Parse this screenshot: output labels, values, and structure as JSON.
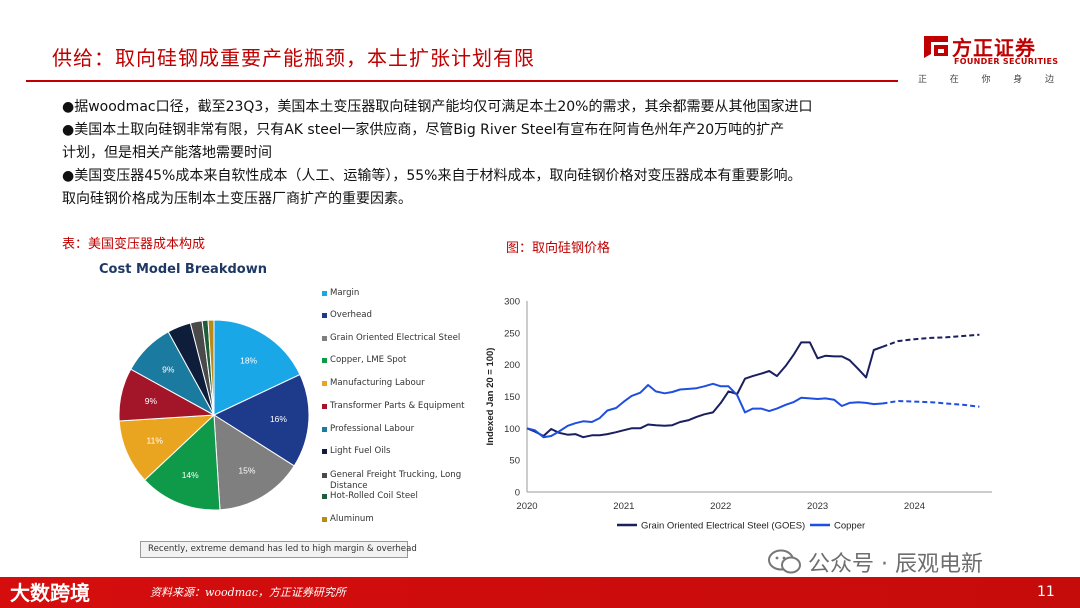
{
  "header": {
    "title": "供给：取向硅钢成重要产能瓶颈，本土扩张计划有限",
    "logo_name": "方正证券",
    "logo_en": "FOUNDER SECURITIES",
    "logo_slogan": [
      "正",
      "在",
      "你",
      "身",
      "边"
    ]
  },
  "bullets": [
    "●据woodmac口径，截至23Q3，美国本土变压器取向硅钢产能均仅可满足本土20%的需求，其余都需要从其他国家进口",
    "●美国本土取向硅钢非常有限，只有AK steel一家供应商，尽管Big River Steel有宣布在阿肯色州年产20万吨的扩产",
    "计划，但是相关产能落地需要时间",
    "●美国变压器45%成本来自软性成本（人工、运输等），55%来自于材料成本，取向硅钢价格对变压器成本有重要影响。",
    "取向硅钢价格成为压制本土变压器厂商扩产的重要因素。"
  ],
  "captions": {
    "left": "表：美国变压器成本构成",
    "right": "图：取向硅钢价格"
  },
  "pie_note": "Recently, extreme demand has led to high margin & overhead",
  "footer": {
    "source": "资料来源：woodmac，方正证券研究所",
    "page": "11",
    "watermark_left": "大数跨境",
    "watermark_right": "公众号 · 辰观电新"
  },
  "chart_data": [
    {
      "type": "pie",
      "title": "Cost Model Breakdown",
      "categories": [
        "Margin",
        "Overhead",
        "Grain Oriented Electrical Steel",
        "Copper, LME Spot",
        "Manufacturing Labour",
        "Transformer Parts & Equipment",
        "Professional Labour",
        "Light Fuel Oils",
        "General Freight Trucking, Long Distance",
        "Hot-Rolled Coil Steel",
        "Aluminum"
      ],
      "values": [
        18,
        16,
        15,
        14,
        11,
        9,
        9,
        4,
        2,
        1,
        1
      ],
      "data_labels": [
        "18%",
        "16%",
        "15%",
        "14%",
        "11%",
        "9%",
        "9%",
        "",
        "",
        "",
        ""
      ],
      "colors": [
        "#1aa7e8",
        "#1e3a8a",
        "#7f7f7f",
        "#0f9a4a",
        "#eaa520",
        "#a3162a",
        "#1a7aa0",
        "#0d1d3a",
        "#4a4a4a",
        "#1f5e3a",
        "#b88a1a"
      ],
      "legend_position": "right"
    },
    {
      "type": "line",
      "title": "",
      "ylabel": "Indexed Jan 20 = 100)",
      "xlabel": "",
      "x_ticks": [
        "2020",
        "2021",
        "2022",
        "2023",
        "2024"
      ],
      "y_ticks": [
        0,
        50,
        100,
        150,
        200,
        250,
        300
      ],
      "xlim": [
        2020.0,
        2024.8
      ],
      "ylim": [
        0,
        300
      ],
      "grid": false,
      "legend_position": "bottom",
      "series": [
        {
          "name": "Grain Oriented Electrical Steel (GOES)",
          "color": "#1a1f5e",
          "x": [
            2020.0,
            2020.08,
            2020.17,
            2020.25,
            2020.33,
            2020.42,
            2020.5,
            2020.58,
            2020.67,
            2020.75,
            2020.83,
            2020.92,
            2021.0,
            2021.08,
            2021.17,
            2021.25,
            2021.33,
            2021.42,
            2021.5,
            2021.58,
            2021.67,
            2021.75,
            2021.83,
            2021.92,
            2022.0,
            2022.08,
            2022.17,
            2022.25,
            2022.33,
            2022.42,
            2022.5,
            2022.58,
            2022.67,
            2022.75,
            2022.83,
            2022.92,
            2023.0,
            2023.08,
            2023.17,
            2023.25,
            2023.33,
            2023.42,
            2023.5,
            2023.58,
            2023.67
          ],
          "y": [
            100,
            95,
            88,
            99,
            93,
            90,
            91,
            86,
            89,
            89,
            91,
            94,
            97,
            100,
            100,
            106,
            105,
            104,
            105,
            110,
            113,
            118,
            122,
            125,
            140,
            158,
            154,
            178,
            182,
            186,
            190,
            182,
            198,
            215,
            235,
            235,
            210,
            214,
            213,
            213,
            207,
            193,
            180,
            223,
            228
          ]
        },
        {
          "name": "GOES (forecast)",
          "color": "#1a1f5e",
          "dashed": true,
          "x": [
            2023.67,
            2023.83,
            2024.0,
            2024.17,
            2024.33,
            2024.5,
            2024.67
          ],
          "y": [
            228,
            237,
            240,
            242,
            243,
            245,
            247
          ]
        },
        {
          "name": "Copper",
          "color": "#1f4fe0",
          "x": [
            2020.0,
            2020.08,
            2020.17,
            2020.25,
            2020.33,
            2020.42,
            2020.5,
            2020.58,
            2020.67,
            2020.75,
            2020.83,
            2020.92,
            2021.0,
            2021.08,
            2021.17,
            2021.25,
            2021.33,
            2021.42,
            2021.5,
            2021.58,
            2021.67,
            2021.75,
            2021.83,
            2021.92,
            2022.0,
            2022.08,
            2022.17,
            2022.25,
            2022.33,
            2022.42,
            2022.5,
            2022.58,
            2022.67,
            2022.75,
            2022.83,
            2022.92,
            2023.0,
            2023.08,
            2023.17,
            2023.25,
            2023.33,
            2023.42,
            2023.5,
            2023.58,
            2023.67
          ],
          "y": [
            100,
            97,
            86,
            88,
            95,
            104,
            108,
            111,
            110,
            116,
            128,
            132,
            142,
            151,
            156,
            168,
            158,
            155,
            157,
            161,
            162,
            163,
            166,
            170,
            166,
            166,
            152,
            125,
            131,
            131,
            127,
            131,
            137,
            141,
            148,
            147,
            146,
            147,
            145,
            135,
            140,
            141,
            140,
            138,
            139
          ]
        },
        {
          "name": "Copper (forecast)",
          "color": "#1f4fe0",
          "dashed": true,
          "x": [
            2023.67,
            2023.83,
            2024.0,
            2024.17,
            2024.33,
            2024.5,
            2024.67
          ],
          "y": [
            139,
            143,
            142,
            141,
            139,
            137,
            134
          ]
        }
      ],
      "legend": [
        "Grain Oriented Electrical Steel (GOES)",
        "Copper"
      ]
    }
  ]
}
